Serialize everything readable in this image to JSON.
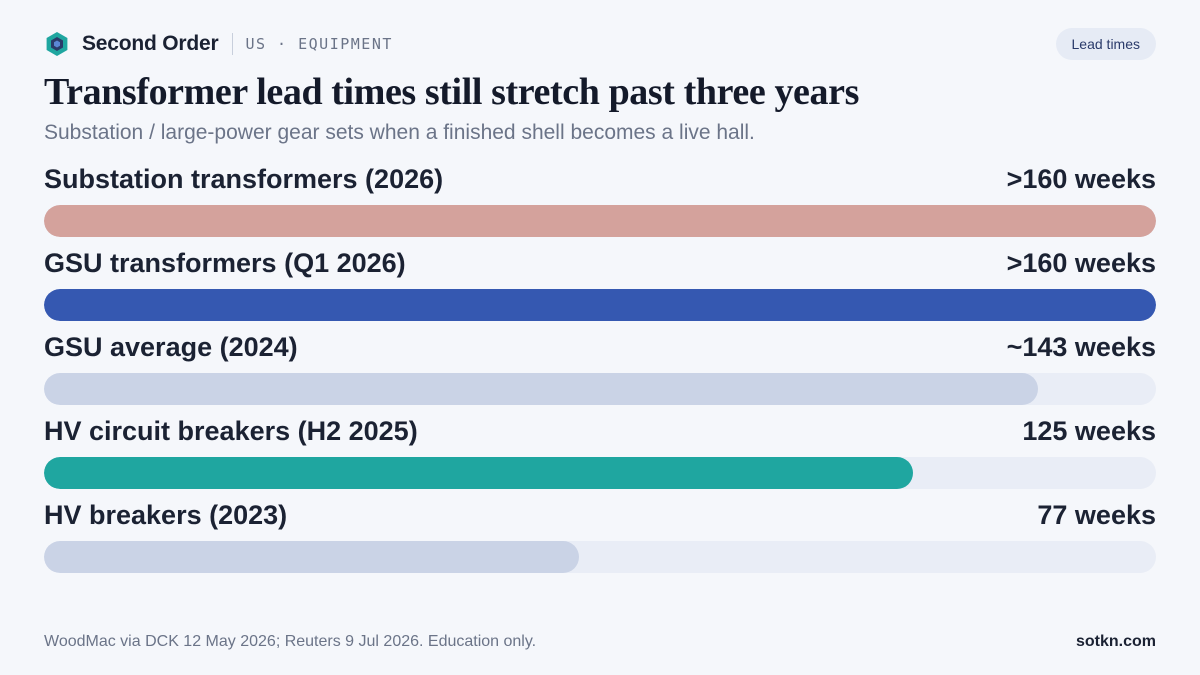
{
  "header": {
    "brand": "Second Order",
    "section": "US · EQUIPMENT",
    "pill": "Lead times",
    "logo_colors": {
      "outer": "#1fa6a0",
      "inner": "#2a3a6a"
    }
  },
  "chart_data": {
    "type": "bar",
    "orientation": "horizontal",
    "title": "Transformer lead times still stretch past three years",
    "subtitle": "Substation / large-power gear sets when a finished shell becomes a live hall.",
    "unit": "weeks",
    "xlim": [
      0,
      160
    ],
    "grid": false,
    "categories": [
      "Substation transformers (2026)",
      "GSU transformers (Q1 2026)",
      "GSU average (2024)",
      "HV circuit breakers (H2 2025)",
      "HV breakers (2023)"
    ],
    "values": [
      160,
      160,
      143,
      125,
      77
    ],
    "value_labels": [
      ">160 weeks",
      ">160 weeks",
      "~143 weeks",
      "125 weeks",
      "77 weeks"
    ],
    "colors": [
      "#d4a29c",
      "#3558b1",
      "#cad3e6",
      "#1fa6a0",
      "#cad3e6"
    ]
  },
  "footer": {
    "source": "WoodMac via DCK 12 May 2026; Reuters 9 Jul 2026. Education only.",
    "site": "sotkn.com"
  }
}
